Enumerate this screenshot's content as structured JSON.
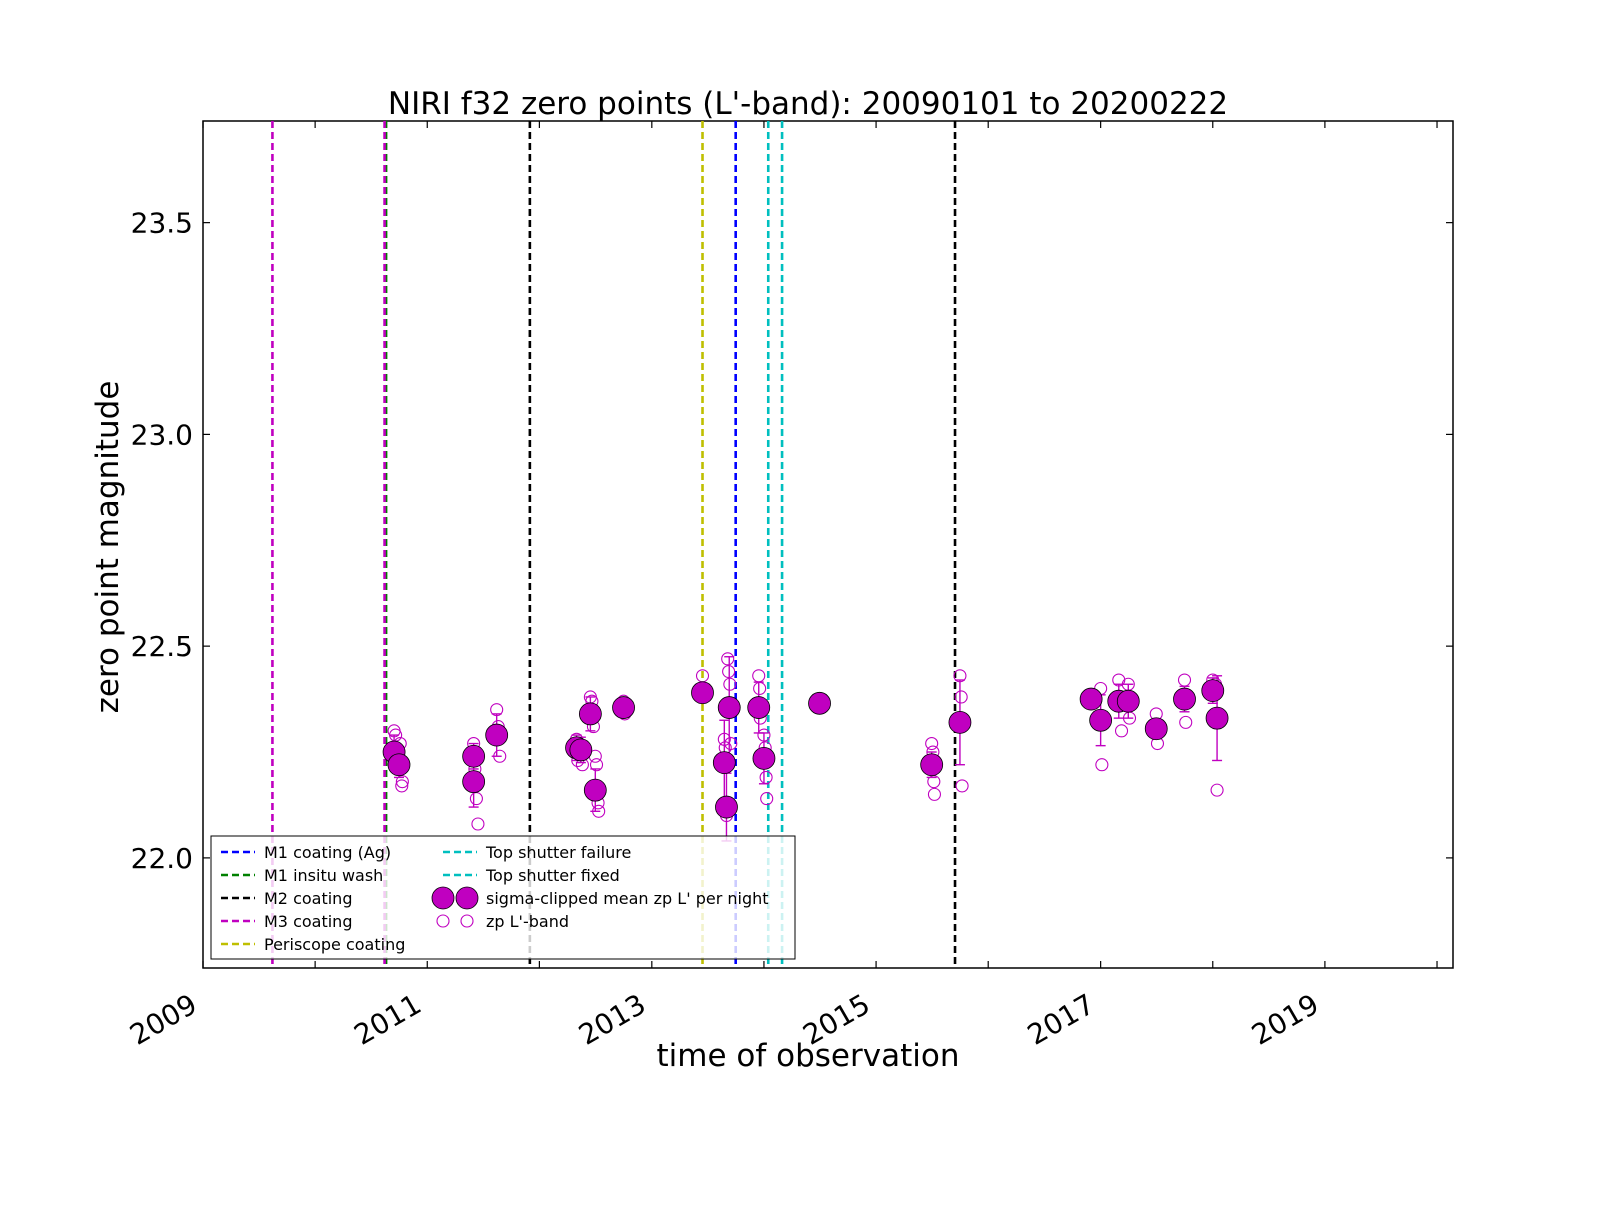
{
  "chart_data": {
    "type": "scatter",
    "title": "NIRI f32 zero points (L'-band): 20090101 to 20200222",
    "xlabel": "time of observation",
    "ylabel": "zero point magnitude",
    "xlim": [
      "2009-01-01",
      "2020-02-22"
    ],
    "ylim": [
      21.74,
      23.74
    ],
    "x_ticks": [
      {
        "value": "2009-01-01",
        "label": "2009"
      },
      {
        "value": "2011-01-01",
        "label": "2011"
      },
      {
        "value": "2013-01-01",
        "label": "2013"
      },
      {
        "value": "2015-01-01",
        "label": "2015"
      },
      {
        "value": "2017-01-01",
        "label": "2017"
      },
      {
        "value": "2019-01-01",
        "label": "2019"
      }
    ],
    "y_ticks": [
      {
        "value": 22.0,
        "label": "22.0"
      },
      {
        "value": 22.5,
        "label": "22.5"
      },
      {
        "value": 23.0,
        "label": "23.0"
      },
      {
        "value": 23.5,
        "label": "23.5"
      }
    ],
    "grid": false,
    "legend_position": "lower-left",
    "events": [
      {
        "name": "M1 coating (Ag)",
        "color": "#0000ff",
        "dates": [
          "2013-10-01"
        ]
      },
      {
        "name": "M1 insitu wash",
        "color": "#008000",
        "dates": [
          "2010-08-20"
        ]
      },
      {
        "name": "M2 coating",
        "color": "#000000",
        "dates": [
          "2011-12-01",
          "2015-09-15"
        ]
      },
      {
        "name": "M3 coating",
        "color": "#c000c0",
        "dates": [
          "2009-08-15",
          "2010-08-15"
        ]
      },
      {
        "name": "Periscope coating",
        "color": "#bfbf00",
        "dates": [
          "2013-06-15"
        ]
      },
      {
        "name": "Top shutter failure",
        "color": "#00bfbf",
        "dates": [
          "2014-01-15"
        ]
      },
      {
        "name": "Top shutter fixed",
        "color": "#00bfbf",
        "dates": [
          "2014-03-01"
        ]
      }
    ],
    "series": [
      {
        "name": "sigma-clipped mean zp L' per night",
        "color": "#c000c0",
        "points": [
          {
            "x": "2010-09-15",
            "y": 22.25,
            "err": 0.04
          },
          {
            "x": "2010-10-01",
            "y": 22.22,
            "err": 0.03
          },
          {
            "x": "2011-06-01",
            "y": 22.24,
            "err": 0.03
          },
          {
            "x": "2011-06-01",
            "y": 22.18,
            "err": 0.06
          },
          {
            "x": "2011-08-15",
            "y": 22.29,
            "err": 0.05
          },
          {
            "x": "2012-05-01",
            "y": 22.26,
            "err": 0.03
          },
          {
            "x": "2012-05-15",
            "y": 22.255,
            "err": 0.03
          },
          {
            "x": "2012-06-15",
            "y": 22.34,
            "err": 0.04
          },
          {
            "x": "2012-07-01",
            "y": 22.16,
            "err": 0.05
          },
          {
            "x": "2012-10-01",
            "y": 22.355,
            "err": 0.02
          },
          {
            "x": "2013-06-15",
            "y": 22.39,
            "err": 0.02
          },
          {
            "x": "2013-08-25",
            "y": 22.225,
            "err": 0.1
          },
          {
            "x": "2013-09-01",
            "y": 22.12,
            "err": 0.08
          },
          {
            "x": "2013-09-10",
            "y": 22.355,
            "err": 0.12
          },
          {
            "x": "2013-12-15",
            "y": 22.355,
            "err": 0.06
          },
          {
            "x": "2014-01-01",
            "y": 22.235,
            "err": 0.06
          },
          {
            "x": "2014-07-01",
            "y": 22.365,
            "err": 0.01
          },
          {
            "x": "2015-07-01",
            "y": 22.22,
            "err": 0.03
          },
          {
            "x": "2015-10-01",
            "y": 22.32,
            "err": 0.1
          },
          {
            "x": "2016-12-01",
            "y": 22.375,
            "err": 0.02
          },
          {
            "x": "2017-01-01",
            "y": 22.325,
            "err": 0.06
          },
          {
            "x": "2017-03-01",
            "y": 22.37,
            "err": 0.04
          },
          {
            "x": "2017-04-01",
            "y": 22.37,
            "err": 0.04
          },
          {
            "x": "2017-07-01",
            "y": 22.305,
            "err": 0.02
          },
          {
            "x": "2017-10-01",
            "y": 22.375,
            "err": 0.03
          },
          {
            "x": "2018-01-01",
            "y": 22.395,
            "err": 0.03
          },
          {
            "x": "2018-01-15",
            "y": 22.33,
            "err": 0.1
          }
        ]
      },
      {
        "name": "zp L'-band",
        "color": "#c000c0",
        "points": [
          {
            "x": "2010-09-15",
            "y": 22.3
          },
          {
            "x": "2010-09-20",
            "y": 22.29
          },
          {
            "x": "2010-09-25",
            "y": 22.21
          },
          {
            "x": "2010-10-05",
            "y": 22.27
          },
          {
            "x": "2010-10-10",
            "y": 22.17
          },
          {
            "x": "2010-10-12",
            "y": 22.18
          },
          {
            "x": "2011-06-01",
            "y": 22.27
          },
          {
            "x": "2011-06-05",
            "y": 22.21
          },
          {
            "x": "2011-06-10",
            "y": 22.14
          },
          {
            "x": "2011-06-15",
            "y": 22.08
          },
          {
            "x": "2011-08-15",
            "y": 22.35
          },
          {
            "x": "2011-08-20",
            "y": 22.31
          },
          {
            "x": "2011-08-25",
            "y": 22.24
          },
          {
            "x": "2012-05-01",
            "y": 22.28
          },
          {
            "x": "2012-05-05",
            "y": 22.23
          },
          {
            "x": "2012-05-20",
            "y": 22.22
          },
          {
            "x": "2012-06-15",
            "y": 22.38
          },
          {
            "x": "2012-06-20",
            "y": 22.37
          },
          {
            "x": "2012-06-25",
            "y": 22.31
          },
          {
            "x": "2012-07-01",
            "y": 22.24
          },
          {
            "x": "2012-07-05",
            "y": 22.22
          },
          {
            "x": "2012-07-10",
            "y": 22.13
          },
          {
            "x": "2012-07-12",
            "y": 22.11
          },
          {
            "x": "2012-10-01",
            "y": 22.37
          },
          {
            "x": "2012-10-05",
            "y": 22.34
          },
          {
            "x": "2013-06-15",
            "y": 22.43
          },
          {
            "x": "2013-06-18",
            "y": 22.38
          },
          {
            "x": "2013-08-25",
            "y": 22.28
          },
          {
            "x": "2013-08-28",
            "y": 22.26
          },
          {
            "x": "2013-09-01",
            "y": 22.1
          },
          {
            "x": "2013-09-05",
            "y": 22.47
          },
          {
            "x": "2013-09-08",
            "y": 22.44
          },
          {
            "x": "2013-09-12",
            "y": 22.41
          },
          {
            "x": "2013-09-15",
            "y": 22.27
          },
          {
            "x": "2013-12-15",
            "y": 22.43
          },
          {
            "x": "2013-12-18",
            "y": 22.4
          },
          {
            "x": "2013-12-20",
            "y": 22.33
          },
          {
            "x": "2014-01-01",
            "y": 22.29
          },
          {
            "x": "2014-01-05",
            "y": 22.26
          },
          {
            "x": "2014-01-08",
            "y": 22.19
          },
          {
            "x": "2014-01-10",
            "y": 22.14
          },
          {
            "x": "2015-07-01",
            "y": 22.27
          },
          {
            "x": "2015-07-05",
            "y": 22.25
          },
          {
            "x": "2015-07-08",
            "y": 22.18
          },
          {
            "x": "2015-07-10",
            "y": 22.15
          },
          {
            "x": "2015-10-01",
            "y": 22.43
          },
          {
            "x": "2015-10-05",
            "y": 22.38
          },
          {
            "x": "2015-10-08",
            "y": 22.17
          },
          {
            "x": "2017-01-01",
            "y": 22.4
          },
          {
            "x": "2017-01-05",
            "y": 22.22
          },
          {
            "x": "2017-03-01",
            "y": 22.42
          },
          {
            "x": "2017-03-10",
            "y": 22.3
          },
          {
            "x": "2017-04-01",
            "y": 22.41
          },
          {
            "x": "2017-04-05",
            "y": 22.33
          },
          {
            "x": "2017-07-01",
            "y": 22.34
          },
          {
            "x": "2017-07-05",
            "y": 22.27
          },
          {
            "x": "2017-10-01",
            "y": 22.42
          },
          {
            "x": "2017-10-05",
            "y": 22.32
          },
          {
            "x": "2018-01-01",
            "y": 22.42
          },
          {
            "x": "2018-01-10",
            "y": 22.41
          },
          {
            "x": "2018-01-15",
            "y": 22.16
          }
        ]
      }
    ]
  }
}
